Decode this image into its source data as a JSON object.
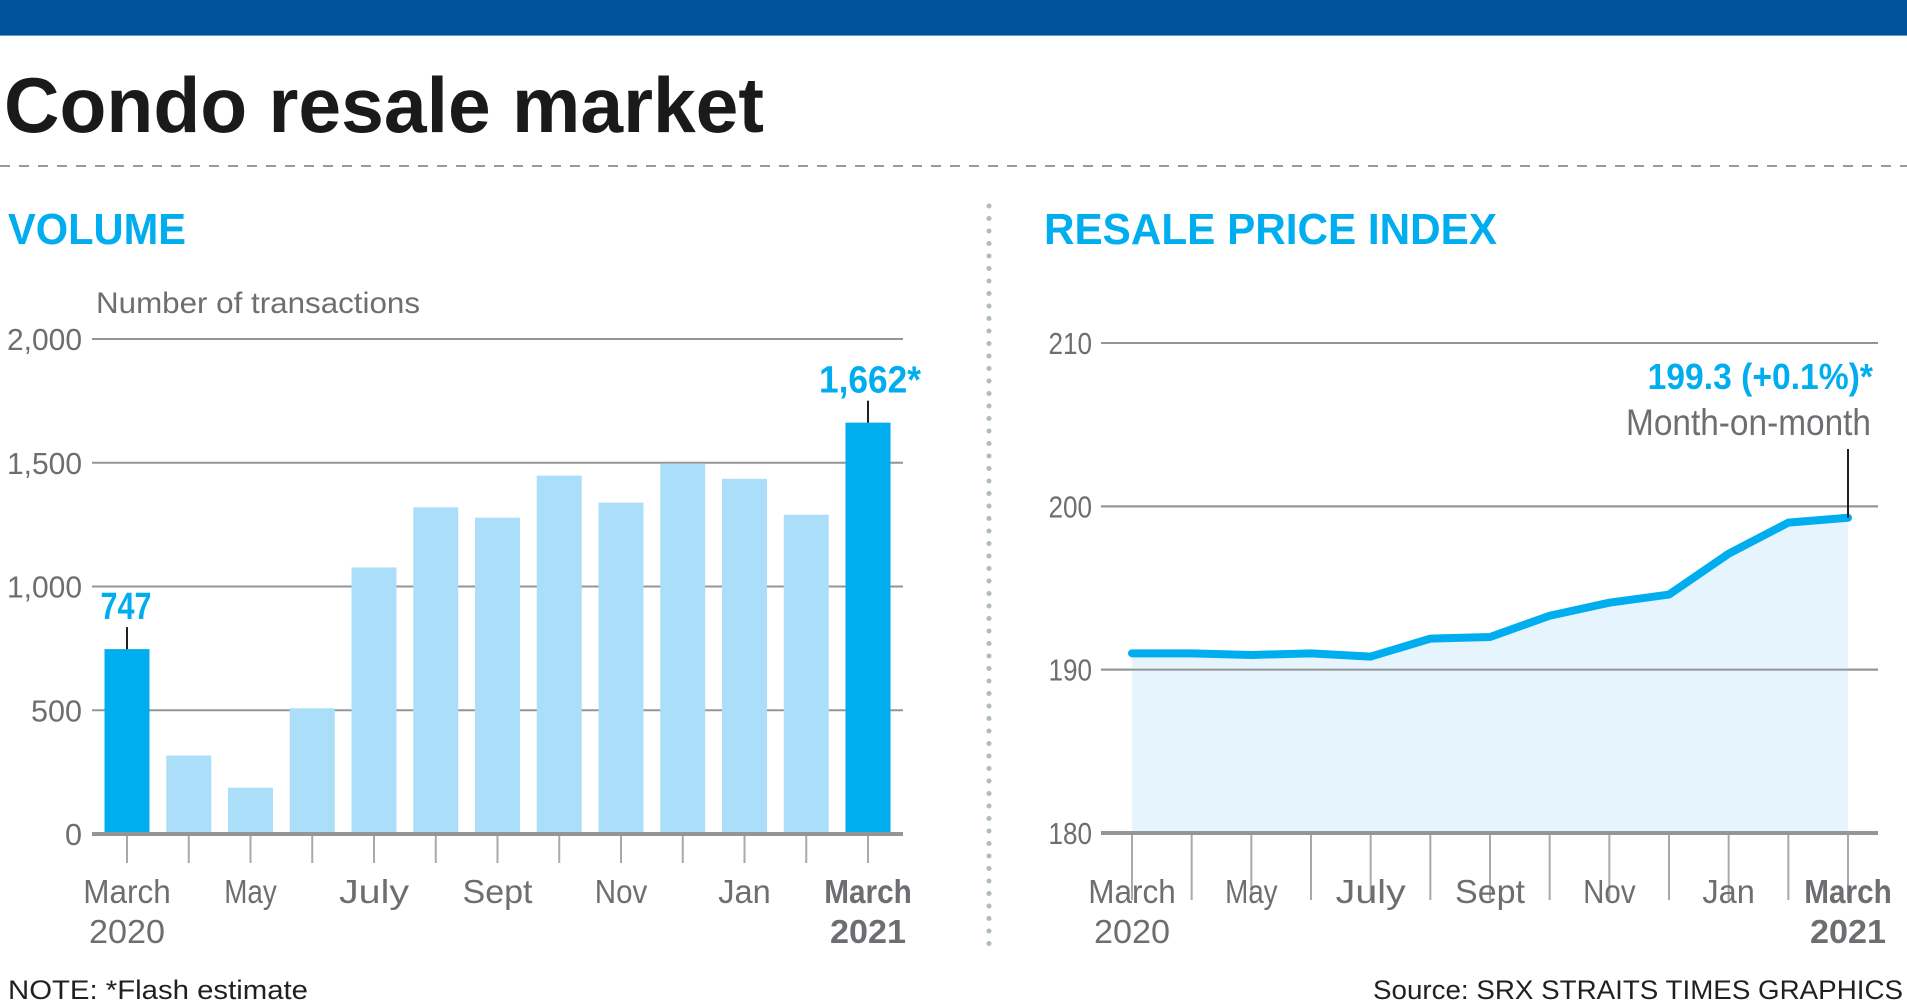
{
  "header": {
    "title": "Condo resale market",
    "accent_color": "#00529b"
  },
  "colors": {
    "highlight": "#00aeef",
    "bar_light": "#abdff9",
    "area_fill": "#e6f5fd",
    "grid": "#939598",
    "text_gray": "#6d6e71"
  },
  "chart_data": [
    {
      "type": "bar",
      "title": "VOLUME",
      "ylabel": "Number of transactions",
      "xlabel": "",
      "ylim": [
        0,
        2000
      ],
      "yticks": [
        0,
        500,
        1000,
        1500,
        2000
      ],
      "ytick_labels": [
        "0",
        "500",
        "1,000",
        "1,500",
        "2,000"
      ],
      "grid": true,
      "categories": [
        "Mar 2020",
        "Apr 2020",
        "May 2020",
        "Jun 2020",
        "Jul 2020",
        "Aug 2020",
        "Sep 2020",
        "Oct 2020",
        "Nov 2020",
        "Dec 2020",
        "Jan 2021",
        "Feb 2021",
        "Mar 2021"
      ],
      "values": [
        747,
        317,
        187,
        508,
        1077,
        1320,
        1278,
        1448,
        1339,
        1496,
        1435,
        1290,
        1662
      ],
      "highlighted": [
        0,
        12
      ],
      "x_labels": [
        {
          "index": 0,
          "line1": "March",
          "line2": "2020",
          "bold": false
        },
        {
          "index": 2,
          "line1": "May",
          "line2": "",
          "bold": false
        },
        {
          "index": 4,
          "line1": "July",
          "line2": "",
          "bold": false
        },
        {
          "index": 6,
          "line1": "Sept",
          "line2": "",
          "bold": false
        },
        {
          "index": 8,
          "line1": "Nov",
          "line2": "",
          "bold": false
        },
        {
          "index": 10,
          "line1": "Jan",
          "line2": "",
          "bold": false
        },
        {
          "index": 12,
          "line1": "March",
          "line2": "2021",
          "bold": true
        }
      ],
      "annotations": [
        {
          "index": 0,
          "text": "747"
        },
        {
          "index": 12,
          "text": "1,662*"
        }
      ]
    },
    {
      "type": "area",
      "title": "RESALE PRICE INDEX",
      "ylabel": "",
      "xlabel": "",
      "ylim": [
        180,
        210
      ],
      "yticks": [
        180,
        190,
        200,
        210
      ],
      "ytick_labels": [
        "180",
        "190",
        "200",
        "210"
      ],
      "grid": true,
      "categories": [
        "Mar 2020",
        "Apr 2020",
        "May 2020",
        "Jun 2020",
        "Jul 2020",
        "Aug 2020",
        "Sep 2020",
        "Oct 2020",
        "Nov 2020",
        "Dec 2020",
        "Jan 2021",
        "Feb 2021",
        "Mar 2021"
      ],
      "values": [
        191.0,
        191.0,
        190.9,
        191.0,
        190.8,
        191.9,
        192.0,
        193.3,
        194.1,
        194.6,
        197.1,
        199.0,
        199.3
      ],
      "x_labels": [
        {
          "index": 0,
          "line1": "March",
          "line2": "2020",
          "bold": false
        },
        {
          "index": 2,
          "line1": "May",
          "line2": "",
          "bold": false
        },
        {
          "index": 4,
          "line1": "July",
          "line2": "",
          "bold": false
        },
        {
          "index": 6,
          "line1": "Sept",
          "line2": "",
          "bold": false
        },
        {
          "index": 8,
          "line1": "Nov",
          "line2": "",
          "bold": false
        },
        {
          "index": 10,
          "line1": "Jan",
          "line2": "",
          "bold": false
        },
        {
          "index": 12,
          "line1": "March",
          "line2": "2021",
          "bold": true
        }
      ],
      "annotations": [
        {
          "index": 12,
          "text": "199.3 (+0.1%)*",
          "subtext": "Month-on-month"
        }
      ]
    }
  ],
  "footer": {
    "note": "NOTE: *Flash estimate",
    "source": "Source: SRX   STRAITS TIMES GRAPHICS"
  }
}
